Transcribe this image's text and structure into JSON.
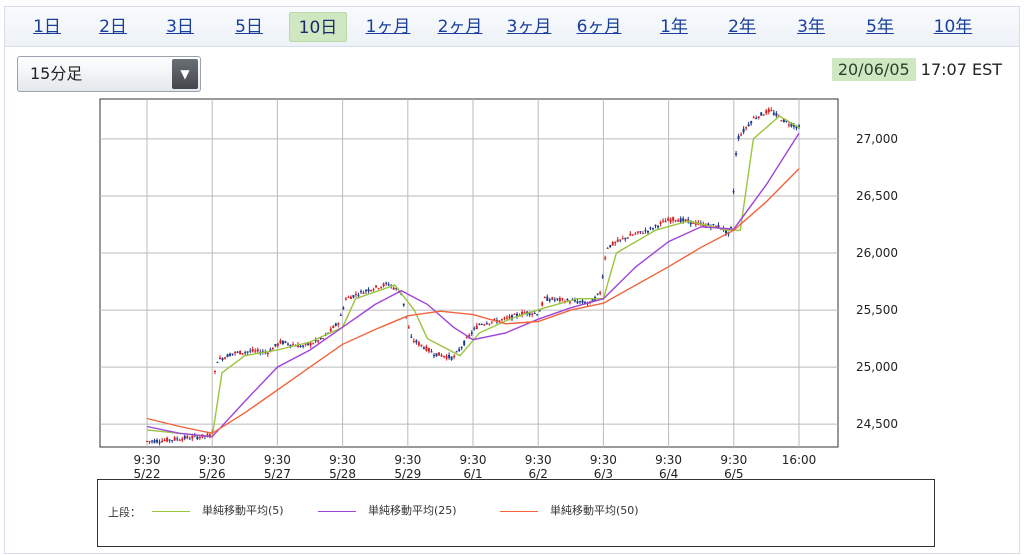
{
  "tabs": [
    {
      "label": "1日",
      "active": false
    },
    {
      "label": "2日",
      "active": false
    },
    {
      "label": "3日",
      "active": false
    },
    {
      "label": "5日",
      "active": false
    },
    {
      "label": "10日",
      "active": true
    },
    {
      "label": "1ヶ月",
      "active": false
    },
    {
      "label": "2ヶ月",
      "active": false
    },
    {
      "label": "3ヶ月",
      "active": false
    },
    {
      "label": "6ヶ月",
      "active": false
    },
    {
      "label": "1年",
      "active": false
    },
    {
      "label": "2年",
      "active": false
    },
    {
      "label": "3年",
      "active": false
    },
    {
      "label": "5年",
      "active": false
    },
    {
      "label": "10年",
      "active": false
    }
  ],
  "interval_select": {
    "value": "15分足"
  },
  "timestamp": {
    "date": "20/06/05",
    "time": "17:07 EST"
  },
  "legend": {
    "prefix": "上段：",
    "items": [
      {
        "label": "単純移動平均(5)",
        "color": "#9bc53d"
      },
      {
        "label": "単純移動平均(25)",
        "color": "#a044d8"
      },
      {
        "label": "単純移動平均(50)",
        "color": "#f0643c"
      }
    ]
  },
  "colors": {
    "up_candle": "#d62020",
    "down_candle": "#1a3a8c",
    "grid": "#bbbbbb",
    "axis": "#333333"
  },
  "chart_data": {
    "type": "line",
    "title": "",
    "ylim": [
      24300,
      27350
    ],
    "y_ticks": [
      24500,
      25000,
      25500,
      26000,
      26500,
      27000
    ],
    "y_tick_labels": [
      "24,500",
      "25,000",
      "25,500",
      "26,000",
      "26,500",
      "27,000"
    ],
    "x_ticks": [
      {
        "time": "9:30",
        "date": "5/22"
      },
      {
        "time": "9:30",
        "date": "5/26"
      },
      {
        "time": "9:30",
        "date": "5/27"
      },
      {
        "time": "9:30",
        "date": "5/28"
      },
      {
        "time": "9:30",
        "date": "5/29"
      },
      {
        "time": "9:30",
        "date": "6/1"
      },
      {
        "time": "9:30",
        "date": "6/2"
      },
      {
        "time": "9:30",
        "date": "6/3"
      },
      {
        "time": "9:30",
        "date": "6/4"
      },
      {
        "time": "9:30",
        "date": "6/5"
      },
      {
        "time": "16:00",
        "date": ""
      }
    ],
    "price_path": [
      [
        0,
        24350
      ],
      [
        0.3,
        24360
      ],
      [
        0.6,
        24380
      ],
      [
        1.0,
        24400
      ],
      [
        1.05,
        25050
      ],
      [
        1.3,
        25120
      ],
      [
        1.6,
        25140
      ],
      [
        1.85,
        25130
      ],
      [
        2.05,
        25220
      ],
      [
        2.4,
        25180
      ],
      [
        2.7,
        25250
      ],
      [
        2.95,
        25400
      ],
      [
        3.05,
        25600
      ],
      [
        3.4,
        25680
      ],
      [
        3.7,
        25730
      ],
      [
        3.9,
        25650
      ],
      [
        4.05,
        25250
      ],
      [
        4.4,
        25120
      ],
      [
        4.7,
        25080
      ],
      [
        4.95,
        25280
      ],
      [
        5.1,
        25380
      ],
      [
        5.5,
        25420
      ],
      [
        5.8,
        25480
      ],
      [
        6.0,
        25470
      ],
      [
        6.1,
        25600
      ],
      [
        6.5,
        25580
      ],
      [
        6.8,
        25560
      ],
      [
        6.95,
        25650
      ],
      [
        7.05,
        26050
      ],
      [
        7.4,
        26150
      ],
      [
        7.7,
        26200
      ],
      [
        7.95,
        26280
      ],
      [
        8.1,
        26300
      ],
      [
        8.5,
        26250
      ],
      [
        8.8,
        26230
      ],
      [
        8.95,
        26150
      ],
      [
        9.05,
        27000
      ],
      [
        9.3,
        27180
      ],
      [
        9.55,
        27250
      ],
      [
        9.8,
        27150
      ],
      [
        10.0,
        27100
      ]
    ],
    "series": [
      {
        "name": "単純移動平均(5)",
        "color": "#9bc53d",
        "points": [
          [
            0,
            24450
          ],
          [
            1.0,
            24390
          ],
          [
            1.15,
            24950
          ],
          [
            1.5,
            25100
          ],
          [
            2.0,
            25150
          ],
          [
            2.5,
            25220
          ],
          [
            3.0,
            25350
          ],
          [
            3.2,
            25600
          ],
          [
            3.8,
            25720
          ],
          [
            4.1,
            25500
          ],
          [
            4.3,
            25250
          ],
          [
            4.8,
            25100
          ],
          [
            5.1,
            25300
          ],
          [
            5.6,
            25430
          ],
          [
            6.1,
            25520
          ],
          [
            6.6,
            25600
          ],
          [
            7.0,
            25600
          ],
          [
            7.2,
            26000
          ],
          [
            7.8,
            26200
          ],
          [
            8.3,
            26280
          ],
          [
            8.9,
            26200
          ],
          [
            9.1,
            26200
          ],
          [
            9.3,
            27000
          ],
          [
            9.7,
            27200
          ],
          [
            10.0,
            27100
          ]
        ]
      },
      {
        "name": "単純移動平均(25)",
        "color": "#a044d8",
        "points": [
          [
            0,
            24480
          ],
          [
            0.5,
            24420
          ],
          [
            1.0,
            24390
          ],
          [
            1.5,
            24700
          ],
          [
            2.0,
            25000
          ],
          [
            2.5,
            25150
          ],
          [
            3.0,
            25350
          ],
          [
            3.5,
            25550
          ],
          [
            3.9,
            25670
          ],
          [
            4.3,
            25550
          ],
          [
            4.7,
            25350
          ],
          [
            5.0,
            25240
          ],
          [
            5.5,
            25300
          ],
          [
            6.0,
            25420
          ],
          [
            6.5,
            25520
          ],
          [
            7.0,
            25600
          ],
          [
            7.5,
            25880
          ],
          [
            8.0,
            26100
          ],
          [
            8.5,
            26230
          ],
          [
            9.0,
            26210
          ],
          [
            9.5,
            26600
          ],
          [
            10.0,
            27050
          ]
        ]
      },
      {
        "name": "単純移動平均(50)",
        "color": "#f0643c",
        "points": [
          [
            0,
            24550
          ],
          [
            0.5,
            24480
          ],
          [
            1.0,
            24420
          ],
          [
            1.5,
            24600
          ],
          [
            2.0,
            24800
          ],
          [
            2.5,
            25000
          ],
          [
            3.0,
            25200
          ],
          [
            3.5,
            25330
          ],
          [
            4.0,
            25450
          ],
          [
            4.5,
            25490
          ],
          [
            5.0,
            25460
          ],
          [
            5.5,
            25380
          ],
          [
            6.0,
            25400
          ],
          [
            6.5,
            25500
          ],
          [
            7.0,
            25560
          ],
          [
            7.5,
            25720
          ],
          [
            8.0,
            25880
          ],
          [
            8.5,
            26050
          ],
          [
            9.0,
            26200
          ],
          [
            9.5,
            26450
          ],
          [
            10.0,
            26740
          ]
        ]
      }
    ]
  }
}
